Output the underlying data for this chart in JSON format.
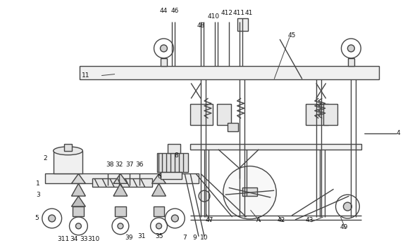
{
  "background_color": "#ffffff",
  "line_color": "#444444",
  "line_width": 1.0,
  "label_fontsize": 6.5,
  "label_color": "#111111",
  "fig_width": 5.82,
  "fig_height": 3.56
}
